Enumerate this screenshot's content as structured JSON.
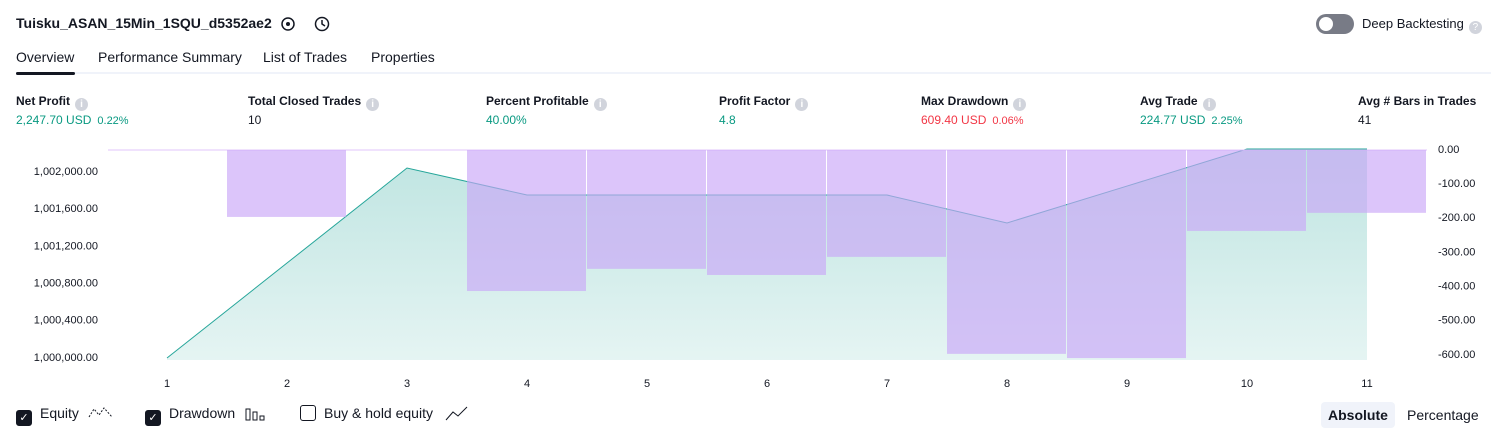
{
  "header": {
    "title": "Tuisku_ASAN_15Min_1SQU_d5352ae2",
    "toggle_label": "Deep Backtesting",
    "tabs": [
      "Overview",
      "Performance Summary",
      "List of Trades",
      "Properties"
    ]
  },
  "metrics": [
    {
      "label": "Net Profit",
      "value": "2,247.70 USD",
      "percent": "0.22%",
      "color": "#089981"
    },
    {
      "label": "Total Closed Trades",
      "value": "10",
      "color": "#131722"
    },
    {
      "label": "Percent Profitable",
      "value": "40.00%",
      "color": "#089981"
    },
    {
      "label": "Profit Factor",
      "value": "4.8",
      "color": "#089981"
    },
    {
      "label": "Max Drawdown",
      "value": "609.40 USD",
      "percent": "0.06%",
      "color": "#f23645"
    },
    {
      "label": "Avg Trade",
      "value": "224.77 USD",
      "percent": "2.25%",
      "color": "#089981"
    },
    {
      "label": "Avg # Bars in Trades",
      "value": "41",
      "color": "#131722"
    }
  ],
  "chart_data": {
    "type": "equity_drawdown",
    "categories": [
      "1",
      "2",
      "3",
      "4",
      "5",
      "6",
      "7",
      "8",
      "9",
      "10",
      "11"
    ],
    "series": [
      {
        "name": "Equity",
        "kind": "line",
        "color": "#26a69a",
        "values": [
          1000000,
          1001021,
          1002043,
          1001753,
          1001753,
          1001753,
          1001753,
          1001452,
          1001849,
          1002247.7,
          1002247.7
        ]
      },
      {
        "name": "Drawdown",
        "kind": "bar",
        "axis": "y2",
        "color": "#c9a6f7",
        "values": [
          0,
          -196,
          0,
          -413,
          -348,
          -366,
          -313,
          -597,
          -609.4,
          -237,
          -184
        ]
      }
    ],
    "legend_extra": "Buy & hold equity",
    "ylim": [
      999978,
      1002237
    ],
    "yticks": [
      {
        "value": 1000000,
        "label": "1,000,000.00"
      },
      {
        "value": 1000400,
        "label": "1,000,400.00"
      },
      {
        "value": 1000800,
        "label": "1,000,800.00"
      },
      {
        "value": 1001200,
        "label": "1,001,200.00"
      },
      {
        "value": 1001600,
        "label": "1,001,600.00"
      },
      {
        "value": 1002000,
        "label": "1,002,000.00"
      }
    ],
    "y2lim": [
      -615,
      0
    ],
    "y2ticks": [
      {
        "value": 0,
        "label": "0.00"
      },
      {
        "value": -100,
        "label": "-100.00"
      },
      {
        "value": -200,
        "label": "-200.00"
      },
      {
        "value": -300,
        "label": "-300.00"
      },
      {
        "value": -400,
        "label": "-400.00"
      },
      {
        "value": -500,
        "label": "-500.00"
      },
      {
        "value": -600,
        "label": "-600.00"
      }
    ],
    "modes": [
      "Absolute",
      "Percentage"
    ]
  }
}
